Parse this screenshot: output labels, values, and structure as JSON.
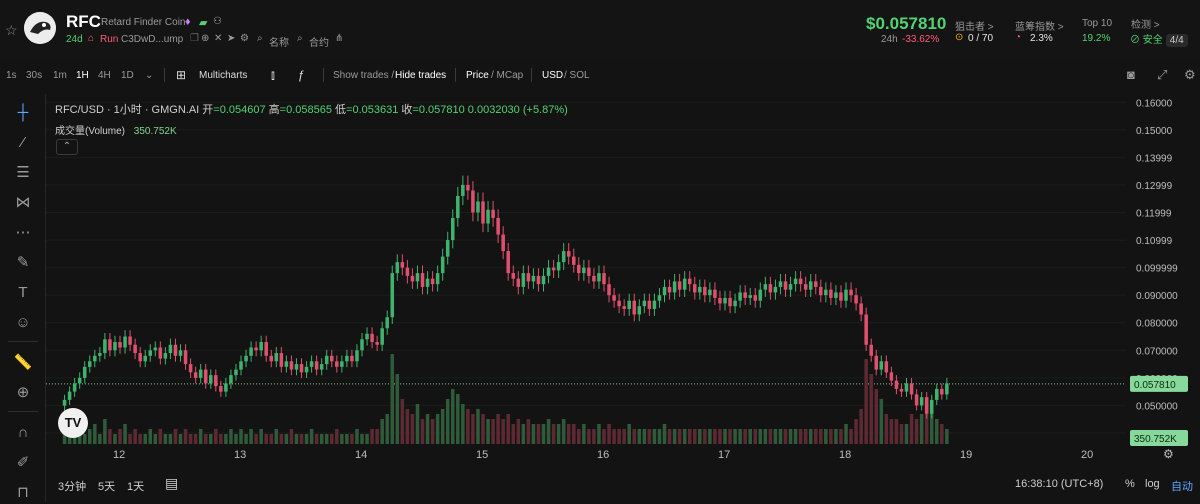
{
  "header": {
    "symbol": "RFC",
    "full_name": "Retard Finder Coin",
    "age": "24d",
    "run_label": "Run",
    "address": "C3DwD...ump",
    "rename_label": "名称",
    "contract_label": "合约",
    "price": "$0.057810",
    "change_label": "24h",
    "change_value": "-33.62%",
    "stats": [
      {
        "label": "狙击者 >",
        "value": "0 / 70"
      },
      {
        "label": "蓝筹指数 >",
        "value": "2.3%"
      },
      {
        "label": "Top 10",
        "value": "19.2%"
      },
      {
        "label": "检测 >",
        "value": "安全",
        "badge": "4/4"
      }
    ]
  },
  "toolbar": {
    "intervals": [
      "1s",
      "30s",
      "1m",
      "1H",
      "4H",
      "1D"
    ],
    "active_interval": "1H",
    "multicharts": "Multicharts",
    "show_trades": "Show trades /",
    "hide_trades": "Hide trades",
    "price_label": "Price",
    "mcap_label": "/ MCap",
    "usd_label": "USD",
    "sol_label": "/ SOL"
  },
  "legend": {
    "title": "RFC/USD · 1小时 · GMGN.AI",
    "open_label": "开",
    "open": "=0.054607",
    "high_label": "高",
    "high": "=0.058565",
    "low_label": "低",
    "low": "=0.053631",
    "close_label": "收",
    "close": "=0.057810",
    "change": "0.0032030 (+5.87%)",
    "volume_label": "成交量(Volume)",
    "volume_value": "350.752K"
  },
  "bottom": {
    "ranges": [
      "3分钟",
      "5天",
      "1天"
    ],
    "time": "16:38:10 (UTC+8)",
    "percent": "%",
    "log": "log",
    "auto": "自动"
  },
  "colors": {
    "up": "#3fb36e",
    "down": "#e0506e",
    "price_tag": "#86d99a",
    "volume_up": "#2f5b3a",
    "volume_down": "#5d2a33"
  },
  "chart_data": {
    "type": "candlestick",
    "title": "RFC/USD · 1小时 · GMGN.AI",
    "x_ticks": [
      "12",
      "13",
      "14",
      "15",
      "16",
      "17",
      "18",
      "19",
      "20"
    ],
    "y_ticks": [
      "0.16000",
      "0.15000",
      "0.13999",
      "0.12999",
      "0.11999",
      "0.10999",
      "0.099999",
      "0.090000",
      "0.080000",
      "0.070000",
      "0.060000",
      "0.050000",
      "0.040000"
    ],
    "ylim": [
      0.036,
      0.163
    ],
    "last_price_label": "0.057810",
    "last_volume_label": "350.752K",
    "candles_per_day": 24,
    "x_start": 11.55,
    "closes": [
      0.052,
      0.055,
      0.058,
      0.06,
      0.064,
      0.066,
      0.068,
      0.069,
      0.074,
      0.07,
      0.073,
      0.071,
      0.075,
      0.072,
      0.069,
      0.066,
      0.068,
      0.07,
      0.071,
      0.067,
      0.069,
      0.072,
      0.068,
      0.07,
      0.065,
      0.062,
      0.06,
      0.063,
      0.058,
      0.061,
      0.057,
      0.055,
      0.058,
      0.061,
      0.063,
      0.066,
      0.068,
      0.071,
      0.07,
      0.073,
      0.068,
      0.066,
      0.069,
      0.064,
      0.066,
      0.063,
      0.065,
      0.062,
      0.064,
      0.066,
      0.063,
      0.065,
      0.068,
      0.066,
      0.064,
      0.066,
      0.068,
      0.066,
      0.07,
      0.074,
      0.076,
      0.073,
      0.072,
      0.078,
      0.082,
      0.098,
      0.102,
      0.1,
      0.097,
      0.095,
      0.098,
      0.093,
      0.096,
      0.094,
      0.098,
      0.104,
      0.11,
      0.118,
      0.126,
      0.13,
      0.128,
      0.12,
      0.124,
      0.116,
      0.121,
      0.118,
      0.112,
      0.106,
      0.098,
      0.096,
      0.093,
      0.098,
      0.095,
      0.097,
      0.094,
      0.097,
      0.1,
      0.099,
      0.102,
      0.106,
      0.104,
      0.101,
      0.098,
      0.1,
      0.097,
      0.095,
      0.098,
      0.094,
      0.09,
      0.088,
      0.086,
      0.085,
      0.088,
      0.083,
      0.086,
      0.088,
      0.085,
      0.088,
      0.09,
      0.093,
      0.091,
      0.095,
      0.092,
      0.096,
      0.094,
      0.091,
      0.093,
      0.09,
      0.092,
      0.089,
      0.087,
      0.089,
      0.086,
      0.088,
      0.091,
      0.089,
      0.09,
      0.088,
      0.092,
      0.094,
      0.091,
      0.093,
      0.095,
      0.092,
      0.094,
      0.096,
      0.094,
      0.092,
      0.095,
      0.093,
      0.09,
      0.092,
      0.089,
      0.091,
      0.088,
      0.092,
      0.09,
      0.087,
      0.083,
      0.072,
      0.068,
      0.063,
      0.066,
      0.062,
      0.059,
      0.056,
      0.055,
      0.058,
      0.054,
      0.05,
      0.053,
      0.047,
      0.052,
      0.056,
      0.054,
      0.058
    ],
    "volumes": [
      3,
      4,
      2,
      3,
      2,
      3,
      4,
      2,
      5,
      3,
      2,
      3,
      4,
      2,
      3,
      2,
      2,
      3,
      2,
      3,
      2,
      2,
      3,
      2,
      3,
      2,
      2,
      3,
      2,
      2,
      3,
      2,
      2,
      3,
      2,
      3,
      2,
      3,
      2,
      3,
      2,
      2,
      3,
      2,
      2,
      3,
      2,
      2,
      2,
      3,
      2,
      2,
      2,
      2,
      3,
      2,
      2,
      2,
      3,
      2,
      2,
      3,
      3,
      5,
      6,
      18,
      14,
      9,
      7,
      6,
      8,
      5,
      6,
      5,
      6,
      7,
      9,
      11,
      10,
      8,
      7,
      6,
      7,
      6,
      5,
      5,
      6,
      5,
      6,
      4,
      5,
      4,
      5,
      4,
      4,
      4,
      5,
      4,
      4,
      5,
      4,
      4,
      3,
      4,
      3,
      3,
      4,
      3,
      4,
      3,
      3,
      3,
      4,
      3,
      3,
      3,
      3,
      3,
      3,
      4,
      3,
      3,
      3,
      3,
      3,
      3,
      3,
      3,
      3,
      3,
      3,
      3,
      3,
      3,
      3,
      3,
      3,
      3,
      3,
      3,
      3,
      3,
      3,
      3,
      3,
      3,
      3,
      3,
      3,
      3,
      3,
      3,
      3,
      3,
      3,
      4,
      3,
      5,
      7,
      17,
      14,
      11,
      9,
      6,
      5,
      5,
      4,
      4,
      6,
      5,
      6,
      9,
      8,
      5,
      4,
      3
    ]
  }
}
